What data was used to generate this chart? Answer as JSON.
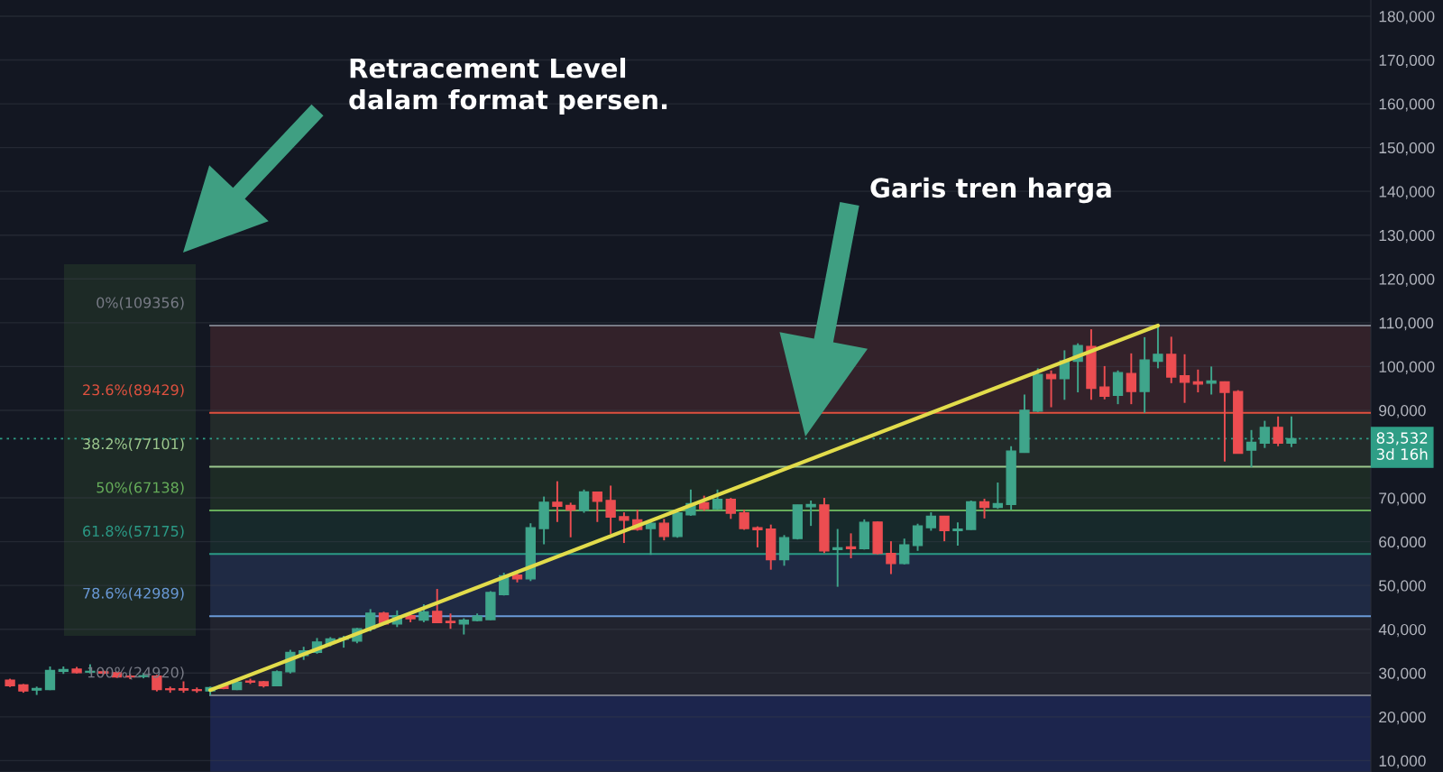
{
  "chart_data": {
    "type": "candlestick",
    "categories": [
      null,
      null,
      null,
      null,
      null,
      null,
      null,
      null,
      null,
      null,
      null,
      null,
      null,
      null,
      null,
      null,
      null,
      null,
      null,
      null,
      null,
      null,
      null,
      null,
      null,
      null,
      null,
      null,
      null,
      null,
      null,
      null,
      null,
      null,
      null,
      null,
      null,
      null,
      null,
      null,
      null,
      null,
      null,
      null,
      null,
      null,
      null,
      null,
      null,
      null,
      null,
      null,
      null,
      null,
      null,
      null,
      null,
      null,
      null,
      null,
      null,
      null,
      null,
      null,
      null,
      null,
      null,
      null,
      null,
      null,
      null,
      null,
      null,
      null,
      null,
      null,
      null,
      null,
      null,
      null,
      null,
      null,
      null,
      null,
      null,
      null,
      null,
      null,
      null,
      null,
      null,
      null,
      null,
      null,
      null,
      null,
      null
    ],
    "ohlc": [
      [
        28400,
        28700,
        26800,
        27100
      ],
      [
        27300,
        27500,
        25500,
        25900
      ],
      [
        26100,
        26900,
        25000,
        26500
      ],
      [
        26200,
        31500,
        26100,
        30600
      ],
      [
        30400,
        31500,
        29800,
        30800
      ],
      [
        30900,
        31400,
        29900,
        30100
      ],
      [
        30200,
        32000,
        29900,
        30400
      ],
      [
        30300,
        30600,
        29600,
        30000
      ],
      [
        30100,
        30300,
        28900,
        29100
      ],
      [
        29300,
        29800,
        28600,
        29100
      ],
      [
        29200,
        30000,
        28800,
        29400
      ],
      [
        29300,
        29600,
        25800,
        26200
      ],
      [
        26400,
        26900,
        25500,
        26200
      ],
      [
        26400,
        28100,
        25500,
        26100
      ],
      [
        26200,
        26700,
        25500,
        26000
      ],
      [
        25900,
        26900,
        24920,
        26700
      ],
      [
        27100,
        27600,
        26300,
        26500
      ],
      [
        26200,
        28200,
        26100,
        27900
      ],
      [
        28200,
        28700,
        27500,
        27900
      ],
      [
        28000,
        28200,
        26700,
        27100
      ],
      [
        27100,
        30600,
        27100,
        30300
      ],
      [
        30300,
        35300,
        29900,
        34700
      ],
      [
        34000,
        36000,
        33000,
        35100
      ],
      [
        34700,
        38000,
        34400,
        37100
      ],
      [
        36800,
        38200,
        36100,
        37800
      ],
      [
        37700,
        38500,
        35800,
        38000
      ],
      [
        37300,
        40300,
        36800,
        40100
      ],
      [
        40100,
        44600,
        39500,
        43700
      ],
      [
        43700,
        44000,
        41000,
        41200
      ],
      [
        41200,
        44300,
        40500,
        43100
      ],
      [
        43100,
        43800,
        41600,
        42400
      ],
      [
        42100,
        45700,
        41600,
        44000
      ],
      [
        44100,
        49200,
        41400,
        41500
      ],
      [
        41800,
        43600,
        40100,
        41500
      ],
      [
        41200,
        42500,
        38800,
        42100
      ],
      [
        42000,
        43600,
        41800,
        43000
      ],
      [
        42200,
        48700,
        42100,
        48400
      ],
      [
        47900,
        52900,
        47700,
        52200
      ],
      [
        52400,
        52900,
        50700,
        51500
      ],
      [
        51500,
        64200,
        51000,
        63200
      ],
      [
        63000,
        70300,
        59400,
        69000
      ],
      [
        69000,
        73800,
        64500,
        68100
      ],
      [
        68300,
        68900,
        61000,
        67200
      ],
      [
        67100,
        71900,
        66600,
        71400
      ],
      [
        71300,
        71400,
        64500,
        69200
      ],
      [
        69400,
        72800,
        61800,
        65600
      ],
      [
        65700,
        66700,
        59700,
        64900
      ],
      [
        65000,
        67300,
        62500,
        62800
      ],
      [
        63000,
        64500,
        57000,
        64200
      ],
      [
        64200,
        65200,
        60300,
        61200
      ],
      [
        61200,
        66900,
        60900,
        66600
      ],
      [
        66100,
        71900,
        65900,
        68700
      ],
      [
        68900,
        70500,
        67000,
        67500
      ],
      [
        67500,
        71900,
        67300,
        69700
      ],
      [
        69700,
        70000,
        65200,
        66500
      ],
      [
        66600,
        67300,
        62700,
        63000
      ],
      [
        63200,
        63500,
        58700,
        62700
      ],
      [
        62900,
        63900,
        53600,
        55900
      ],
      [
        55900,
        61500,
        54500,
        60900
      ],
      [
        60700,
        68400,
        60500,
        68400
      ],
      [
        68000,
        69400,
        63600,
        68500
      ],
      [
        68400,
        70000,
        57400,
        57900
      ],
      [
        58200,
        62900,
        49700,
        58600
      ],
      [
        58800,
        61900,
        56200,
        58400
      ],
      [
        58400,
        65100,
        58200,
        64400
      ],
      [
        64500,
        64600,
        57100,
        57300
      ],
      [
        57300,
        60100,
        52600,
        55000
      ],
      [
        55000,
        60700,
        54800,
        59300
      ],
      [
        59100,
        64100,
        57900,
        63600
      ],
      [
        63200,
        66700,
        62500,
        65800
      ],
      [
        65800,
        65900,
        60100,
        62500
      ],
      [
        62500,
        64400,
        59100,
        62900
      ],
      [
        62800,
        69400,
        62700,
        69100
      ],
      [
        69100,
        69800,
        65300,
        67800
      ],
      [
        67800,
        73500,
        67500,
        68700
      ],
      [
        68500,
        81800,
        67300,
        80700
      ],
      [
        80400,
        93600,
        80300,
        90000
      ],
      [
        89800,
        99600,
        89600,
        98200
      ],
      [
        98200,
        99100,
        90700,
        97200
      ],
      [
        97200,
        103700,
        92400,
        101300
      ],
      [
        101200,
        105300,
        94100,
        104800
      ],
      [
        104600,
        108500,
        92400,
        95000
      ],
      [
        95300,
        100100,
        92500,
        93200
      ],
      [
        93400,
        99100,
        91400,
        98600
      ],
      [
        98400,
        103000,
        91400,
        94300
      ],
      [
        94300,
        106700,
        89400,
        101500
      ],
      [
        101200,
        109356,
        99600,
        102800
      ],
      [
        102800,
        106800,
        96200,
        97600
      ],
      [
        97900,
        102800,
        91700,
        96400
      ],
      [
        96500,
        99300,
        94100,
        96000
      ],
      [
        96200,
        100000,
        93600,
        96700
      ],
      [
        96500,
        96600,
        78300,
        94100
      ],
      [
        94300,
        94600,
        80100,
        80200
      ],
      [
        80900,
        85500,
        77000,
        82700
      ],
      [
        82500,
        87600,
        81400,
        86100
      ],
      [
        86100,
        88600,
        81800,
        82500
      ],
      [
        82500,
        88600,
        81600,
        83532
      ]
    ],
    "colors": [
      "#ec4d51",
      "#ec4d51",
      "#3fa58b",
      "#3fa58b",
      "#3fa58b",
      "#ec4d51",
      "#3fa58b",
      "#ec4d51",
      "#ec4d51",
      "#ec4d51",
      "#3fa58b",
      "#ec4d51",
      "#ec4d51",
      "#ec4d51",
      "#ec4d51",
      "#3fa58b",
      "#ec4d51",
      "#3fa58b",
      "#ec4d51",
      "#ec4d51",
      "#3fa58b",
      "#3fa58b",
      "#3fa58b",
      "#3fa58b",
      "#3fa58b",
      "#3fa58b",
      "#3fa58b",
      "#3fa58b",
      "#ec4d51",
      "#3fa58b",
      "#ec4d51",
      "#3fa58b",
      "#ec4d51",
      "#ec4d51",
      "#3fa58b",
      "#3fa58b",
      "#3fa58b",
      "#3fa58b",
      "#ec4d51",
      "#3fa58b",
      "#3fa58b",
      "#ec4d51",
      "#ec4d51",
      "#3fa58b",
      "#ec4d51",
      "#ec4d51",
      "#ec4d51",
      "#ec4d51",
      "#3fa58b",
      "#ec4d51",
      "#3fa58b",
      "#3fa58b",
      "#ec4d51",
      "#3fa58b",
      "#ec4d51",
      "#ec4d51",
      "#ec4d51",
      "#ec4d51",
      "#3fa58b",
      "#3fa58b",
      "#3fa58b",
      "#ec4d51",
      "#3fa58b",
      "#ec4d51",
      "#3fa58b",
      "#ec4d51",
      "#ec4d51",
      "#3fa58b",
      "#3fa58b",
      "#3fa58b",
      "#ec4d51",
      "#3fa58b",
      "#3fa58b",
      "#ec4d51",
      "#3fa58b",
      "#3fa58b",
      "#3fa58b",
      "#3fa58b",
      "#ec4d51",
      "#3fa58b",
      "#3fa58b",
      "#ec4d51",
      "#ec4d51",
      "#3fa58b",
      "#ec4d51",
      "#3fa58b",
      "#3fa58b",
      "#ec4d51",
      "#ec4d51",
      "#ec4d51",
      "#3fa58b",
      "#ec4d51",
      "#ec4d51",
      "#3fa58b",
      "#3fa58b",
      "#ec4d51",
      "#3fa58b"
    ],
    "series": [
      {
        "type": "line",
        "color": "#e2dc4b",
        "values": [
          null,
          null,
          null,
          null,
          null,
          null,
          null,
          null,
          null,
          null,
          null,
          null,
          null,
          null,
          null,
          26100,
          null,
          null,
          null,
          null,
          null,
          null,
          null,
          null,
          null,
          null,
          null,
          null,
          null,
          null,
          null,
          null,
          null,
          null,
          null,
          null,
          null,
          null,
          null,
          null,
          null,
          null,
          null,
          null,
          null,
          null,
          null,
          null,
          null,
          null,
          null,
          null,
          null,
          null,
          null,
          null,
          null,
          null,
          null,
          null,
          null,
          null,
          null,
          null,
          null,
          null,
          null,
          null,
          null,
          null,
          null,
          null,
          null,
          null,
          null,
          null,
          null,
          null,
          null,
          null,
          null,
          null,
          null,
          null,
          null,
          null,
          109356,
          null,
          null,
          null,
          null,
          null,
          null,
          null,
          null,
          null,
          null
        ]
      }
    ],
    "ylim": [
      7400,
      183700
    ],
    "yticks": [
      {
        "value": 10000,
        "label": "10,000"
      },
      {
        "value": 20000,
        "label": "20,000"
      },
      {
        "value": 30000,
        "label": "30,000"
      },
      {
        "value": 40000,
        "label": "40,000"
      },
      {
        "value": 50000,
        "label": "50,000"
      },
      {
        "value": 60000,
        "label": "60,000"
      },
      {
        "value": 70000,
        "label": "70,000"
      },
      {
        "value": 90000,
        "label": "90,000"
      },
      {
        "value": 100000,
        "label": "100,000"
      },
      {
        "value": 110000,
        "label": "110,000"
      },
      {
        "value": 120000,
        "label": "120,000"
      },
      {
        "value": 130000,
        "label": "130,000"
      },
      {
        "value": 140000,
        "label": "140,000"
      },
      {
        "value": 150000,
        "label": "150,000"
      },
      {
        "value": 160000,
        "label": "160,000"
      },
      {
        "value": 170000,
        "label": "170,000"
      },
      {
        "value": 180000,
        "label": "180,000"
      }
    ],
    "grid": "y",
    "tick_labels": "y",
    "ref_lines": [
      {
        "axis": "y",
        "value": 109356,
        "label": "0%(109356)",
        "color": "#787b86"
      },
      {
        "axis": "y",
        "value": 89429,
        "label": "23.6%(89429)",
        "color": "#e0513f"
      },
      {
        "axis": "y",
        "value": 77101,
        "label": "38.2%(77101)",
        "color": "#9cc78d"
      },
      {
        "axis": "y",
        "value": 67138,
        "label": "50%(67138)",
        "color": "#66ad5a"
      },
      {
        "axis": "y",
        "value": 57175,
        "label": "61.8%(57175)",
        "color": "#2b9a86"
      },
      {
        "axis": "y",
        "value": 42989,
        "label": "78.6%(42989)",
        "color": "#6a9ad8"
      },
      {
        "axis": "y",
        "value": 24920,
        "label": "100%(24920)",
        "color": "#787b86"
      },
      {
        "axis": "y",
        "value": 83532,
        "label": "83,532\n3d 16h",
        "color": "#2f9e86",
        "line_style": "dotted"
      }
    ],
    "bands": [
      {
        "axis": "y",
        "from": 109356,
        "to": 89429,
        "color": "#33222a"
      },
      {
        "axis": "y",
        "from": 89429,
        "to": 77101,
        "color": "#232b2a"
      },
      {
        "axis": "y",
        "from": 77101,
        "to": 67138,
        "color": "#1d2b25"
      },
      {
        "axis": "y",
        "from": 67138,
        "to": 57175,
        "color": "#17292b"
      },
      {
        "axis": "y",
        "from": 57175,
        "to": 42989,
        "color": "#1f2a44"
      },
      {
        "axis": "y",
        "from": 42989,
        "to": 24920,
        "color": "#21232e"
      },
      {
        "axis": "y",
        "from": 24920,
        "to": 7400,
        "color": "#1c254d"
      }
    ],
    "annotations": [
      "Retracement Level\ndalam format persen.",
      "Garis tren harga"
    ]
  }
}
